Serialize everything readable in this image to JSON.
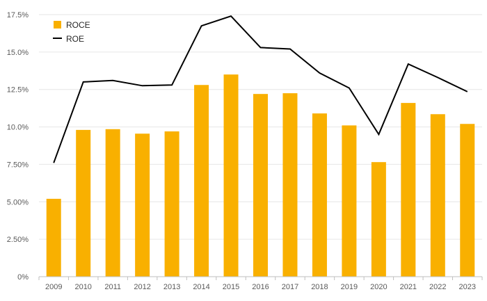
{
  "chart_data": {
    "type": "bar",
    "categories": [
      "2009",
      "2010",
      "2011",
      "2012",
      "2013",
      "2014",
      "2015",
      "2016",
      "2017",
      "2018",
      "2019",
      "2020",
      "2021",
      "2022",
      "2023"
    ],
    "series": [
      {
        "name": "ROCE",
        "type": "bar",
        "color": "#F9B000",
        "values": [
          5.2,
          9.8,
          9.85,
          9.55,
          9.7,
          12.8,
          13.5,
          12.2,
          12.25,
          10.9,
          10.1,
          7.65,
          11.6,
          10.85,
          10.2
        ]
      },
      {
        "name": "ROE",
        "type": "line",
        "color": "#000000",
        "values": [
          7.6,
          13.0,
          13.1,
          12.75,
          12.8,
          16.75,
          17.4,
          15.3,
          15.2,
          13.6,
          12.6,
          9.5,
          14.2,
          13.3,
          12.35
        ]
      }
    ],
    "ylim": [
      0,
      17.5
    ],
    "yticks": [
      "0%",
      "2.50%",
      "5.00%",
      "7.50%",
      "10.0%",
      "12.5%",
      "15.0%",
      "17.5%"
    ],
    "ytick_values": [
      0,
      2.5,
      5,
      7.5,
      10,
      12.5,
      15,
      17.5
    ],
    "grid": true,
    "legend_position": "top-left",
    "title": "",
    "xlabel": "",
    "ylabel": ""
  }
}
